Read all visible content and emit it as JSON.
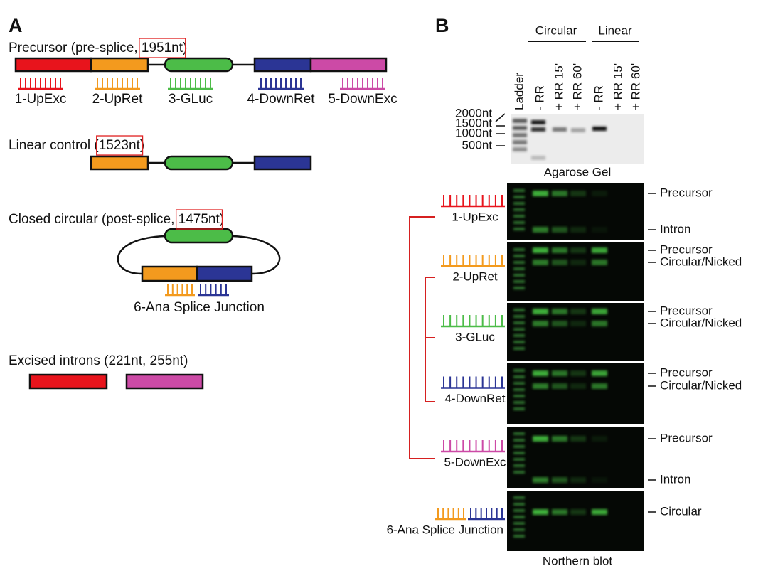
{
  "panel_a": {
    "label": "A",
    "precursor": {
      "text": "Precursor (pre-splice, ",
      "length": "1951nt",
      "close": ")"
    },
    "probes": [
      "1-UpExc",
      "2-UpRet",
      "3-GLuc",
      "4-DownRet",
      "5-DownExc"
    ],
    "linear": {
      "text": "Linear control (",
      "length": "1523nt",
      "close": ")"
    },
    "circular": {
      "text": "Closed circular (post-splice, ",
      "length": "1475nt",
      "close": ")",
      "junction_probe": "6-Ana Splice Junction"
    },
    "introns": {
      "text": "Excised introns (221nt, 255nt)"
    }
  },
  "panel_b": {
    "label": "B",
    "groups": [
      "Circular",
      "Linear"
    ],
    "lanes": [
      "Ladder",
      "- RR",
      "+ RR 15'",
      "+ RR 60'",
      "- RR",
      "+ RR 15'",
      "+ RR 60'"
    ],
    "sizes": [
      "2000nt",
      "1500nt",
      "1000nt",
      "500nt"
    ],
    "gel_caption": "Agarose Gel",
    "blots": [
      {
        "probe": "1-UpExc",
        "bands": [
          "Precursor",
          "Intron"
        ]
      },
      {
        "probe": "2-UpRet",
        "bands": [
          "Precursor",
          "Circular/Nicked"
        ]
      },
      {
        "probe": "3-GLuc",
        "bands": [
          "Precursor",
          "Circular/Nicked"
        ]
      },
      {
        "probe": "4-DownRet",
        "bands": [
          "Precursor",
          "Circular/Nicked"
        ]
      },
      {
        "probe": "5-DownExc",
        "bands": [
          "Precursor",
          "Intron"
        ]
      },
      {
        "probe": "6-Ana Splice Junction",
        "bands": [
          "Circular"
        ]
      }
    ],
    "blot_caption": "Northern blot"
  }
}
